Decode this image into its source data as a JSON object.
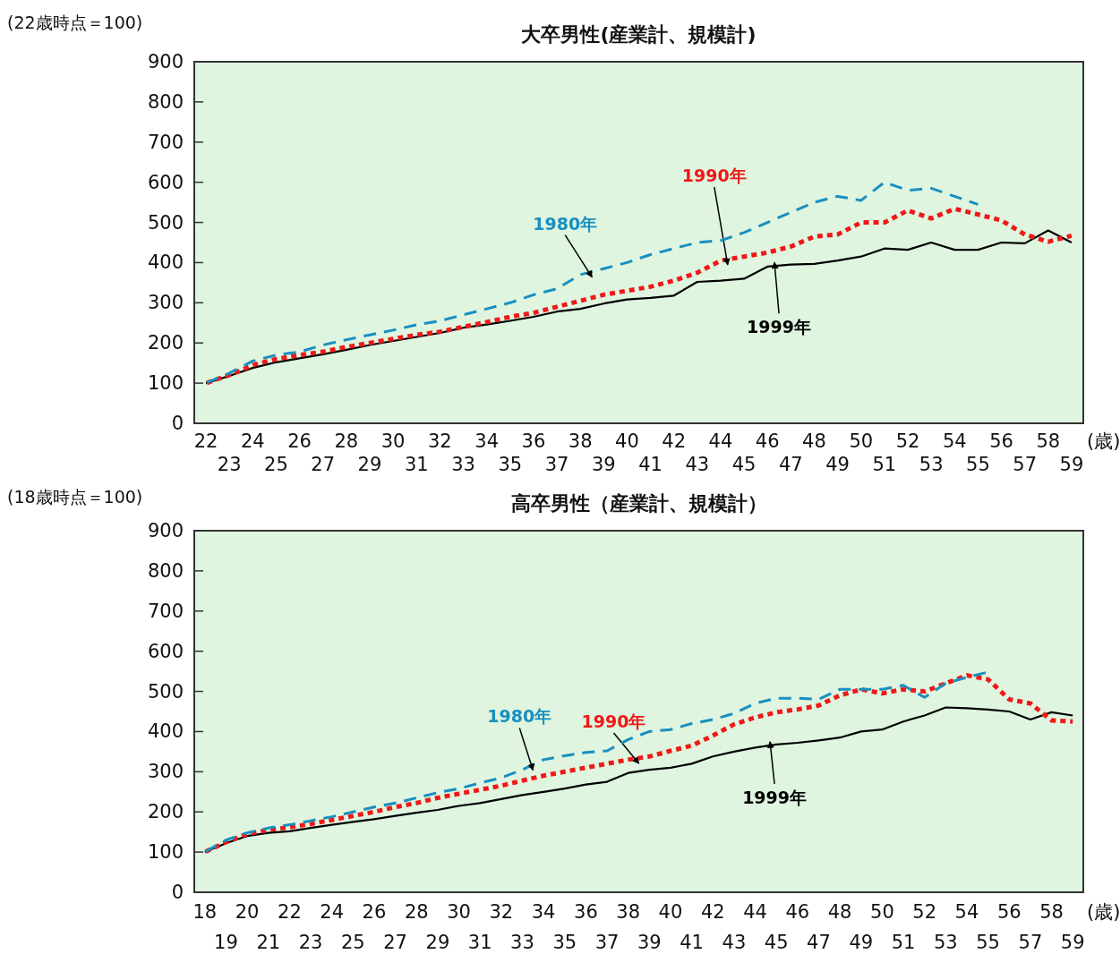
{
  "chart_data": [
    {
      "type": "line",
      "title": "大卒男性(産業計、規模計)",
      "ylabel": "(22歳時点＝100)",
      "xlabel": "(歳)",
      "categories": [
        "22",
        "23",
        "24",
        "25",
        "26",
        "27",
        "28",
        "29",
        "30",
        "31",
        "32",
        "33",
        "34",
        "35",
        "36",
        "37",
        "38",
        "39",
        "40",
        "41",
        "42",
        "43",
        "44",
        "45",
        "46",
        "47",
        "48",
        "49",
        "50",
        "51",
        "52",
        "53",
        "54",
        "55",
        "56",
        "57",
        "58",
        "59"
      ],
      "ylim": [
        0,
        900
      ],
      "yticks": [
        0,
        100,
        200,
        300,
        400,
        500,
        600,
        700,
        800,
        900
      ],
      "series": [
        {
          "name": "1980年",
          "color": "#1a8fc0",
          "line_style": "dashed",
          "values": [
            100,
            125,
            155,
            170,
            178,
            195,
            208,
            220,
            232,
            245,
            255,
            270,
            285,
            300,
            320,
            335,
            370,
            385,
            400,
            420,
            435,
            450,
            455,
            475,
            500,
            525,
            550,
            565,
            555,
            600,
            580,
            585,
            565,
            545,
            null,
            null,
            null,
            null
          ]
        },
        {
          "name": "1990年",
          "color": "#f01818",
          "line_style": "dotted",
          "values": [
            100,
            120,
            145,
            160,
            170,
            178,
            190,
            200,
            210,
            220,
            228,
            240,
            252,
            265,
            275,
            290,
            305,
            320,
            330,
            340,
            355,
            375,
            405,
            415,
            425,
            440,
            465,
            470,
            500,
            500,
            530,
            510,
            534,
            520,
            505,
            470,
            452,
            467
          ]
        },
        {
          "name": "1999年",
          "color": "#000000",
          "line_style": "solid",
          "values": [
            100,
            118,
            138,
            152,
            162,
            172,
            183,
            195,
            205,
            215,
            225,
            238,
            246,
            255,
            265,
            278,
            285,
            298,
            308,
            312,
            318,
            352,
            355,
            360,
            390,
            395,
            397,
            405,
            415,
            435,
            432,
            450,
            432,
            432,
            450,
            448,
            480,
            450
          ]
        }
      ]
    },
    {
      "type": "line",
      "title": "高卒男性（産業計、規模計）",
      "ylabel": "(18歳時点＝100)",
      "xlabel": "(歳)",
      "categories": [
        "18",
        "19",
        "20",
        "21",
        "22",
        "23",
        "24",
        "25",
        "26",
        "27",
        "28",
        "29",
        "30",
        "31",
        "32",
        "33",
        "34",
        "35",
        "36",
        "37",
        "38",
        "39",
        "40",
        "41",
        "42",
        "43",
        "44",
        "45",
        "46",
        "47",
        "48",
        "49",
        "50",
        "51",
        "52",
        "53",
        "54",
        "55",
        "56",
        "57",
        "58",
        "59"
      ],
      "ylim": [
        0,
        900
      ],
      "yticks": [
        0,
        100,
        200,
        300,
        400,
        500,
        600,
        700,
        800,
        900
      ],
      "series": [
        {
          "name": "1980年",
          "color": "#1a8fc0",
          "line_style": "dashed",
          "values": [
            100,
            130,
            148,
            160,
            168,
            178,
            188,
            200,
            212,
            222,
            235,
            248,
            258,
            272,
            285,
            305,
            330,
            340,
            348,
            352,
            380,
            400,
            405,
            420,
            430,
            445,
            470,
            483,
            483,
            480,
            505,
            505,
            505,
            515,
            485,
            520,
            535,
            548,
            null,
            null,
            null,
            null
          ]
        },
        {
          "name": "1990年",
          "color": "#f01818",
          "line_style": "dotted",
          "values": [
            100,
            125,
            145,
            155,
            162,
            170,
            180,
            190,
            200,
            212,
            222,
            235,
            245,
            255,
            265,
            278,
            290,
            300,
            310,
            320,
            330,
            338,
            352,
            365,
            390,
            418,
            435,
            448,
            455,
            465,
            490,
            505,
            495,
            505,
            500,
            520,
            540,
            530,
            480,
            470,
            428,
            425
          ]
        },
        {
          "name": "1999年",
          "color": "#000000",
          "line_style": "solid",
          "values": [
            100,
            122,
            140,
            148,
            152,
            160,
            168,
            175,
            182,
            190,
            198,
            205,
            215,
            222,
            232,
            242,
            250,
            258,
            268,
            275,
            297,
            305,
            310,
            320,
            338,
            350,
            360,
            368,
            372,
            378,
            385,
            400,
            405,
            425,
            440,
            460,
            458,
            455,
            450,
            430,
            448,
            440
          ]
        }
      ]
    }
  ]
}
